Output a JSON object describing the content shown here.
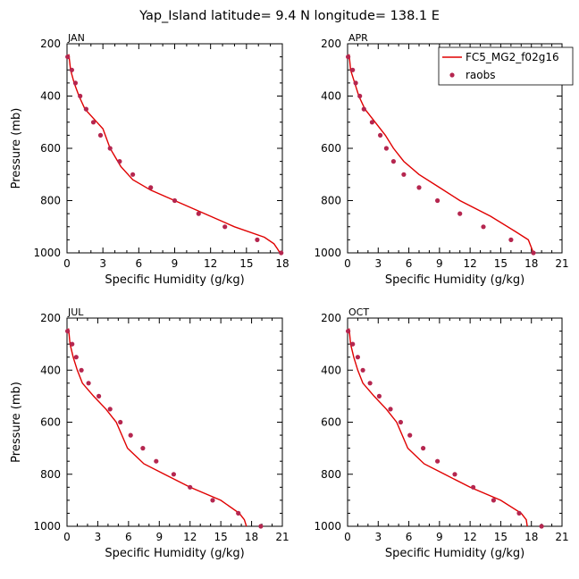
{
  "figure": {
    "title": "Yap_Island  latitude= 9.4 N longitude= 138.1 E"
  },
  "colors": {
    "model_line": "#e00000",
    "raobs_marker": "#b5264f",
    "axes": "#000000"
  },
  "chart_data": [
    {
      "type": "line",
      "panel_title": "JAN",
      "xlabel": "Specific Humidity (g/kg)",
      "ylabel": "Pressure (mb)",
      "xlim": [
        0,
        18
      ],
      "xticks": [
        0,
        3,
        6,
        9,
        12,
        15,
        18
      ],
      "ylim": [
        1000,
        200
      ],
      "yticks": [
        200,
        400,
        600,
        800,
        1000
      ],
      "legend": null,
      "series": [
        {
          "name": "FC5_MG2_f02g16",
          "kind": "line",
          "points": [
            [
              0.15,
              240
            ],
            [
              0.3,
              300
            ],
            [
              0.6,
              350
            ],
            [
              1.0,
              400
            ],
            [
              1.5,
              450
            ],
            [
              2.5,
              500
            ],
            [
              3.0,
              525
            ],
            [
              3.6,
              600
            ],
            [
              4.5,
              670
            ],
            [
              5.5,
              720
            ],
            [
              7.0,
              760
            ],
            [
              9.0,
              800
            ],
            [
              11.5,
              850
            ],
            [
              14.0,
              900
            ],
            [
              16.5,
              940
            ],
            [
              17.3,
              965
            ],
            [
              17.6,
              985
            ],
            [
              17.8,
              1000
            ]
          ]
        },
        {
          "name": "raobs",
          "kind": "scatter",
          "points": [
            [
              0.05,
              250
            ],
            [
              0.4,
              300
            ],
            [
              0.7,
              350
            ],
            [
              1.1,
              400
            ],
            [
              1.6,
              450
            ],
            [
              2.2,
              500
            ],
            [
              2.8,
              550
            ],
            [
              3.6,
              600
            ],
            [
              4.4,
              650
            ],
            [
              5.5,
              700
            ],
            [
              7.0,
              750
            ],
            [
              9.0,
              800
            ],
            [
              11.0,
              850
            ],
            [
              13.2,
              900
            ],
            [
              15.9,
              950
            ],
            [
              17.9,
              1000
            ]
          ]
        }
      ]
    },
    {
      "type": "line",
      "panel_title": "APR",
      "xlabel": "Specific Humidity (g/kg)",
      "ylabel": "",
      "xlim": [
        0,
        21
      ],
      "xticks": [
        0,
        3,
        6,
        9,
        12,
        15,
        18,
        21
      ],
      "ylim": [
        1000,
        200
      ],
      "yticks": [
        200,
        400,
        600,
        800,
        1000
      ],
      "legend": {
        "placement": "top-right",
        "entries": [
          {
            "label": "FC5_MG2_f02g16",
            "kind": "line"
          },
          {
            "label": "raobs",
            "kind": "marker"
          }
        ]
      },
      "series": [
        {
          "name": "FC5_MG2_f02g16",
          "kind": "line",
          "points": [
            [
              0.15,
              240
            ],
            [
              0.3,
              300
            ],
            [
              0.7,
              350
            ],
            [
              1.1,
              400
            ],
            [
              1.7,
              450
            ],
            [
              2.7,
              500
            ],
            [
              3.7,
              550
            ],
            [
              4.5,
              600
            ],
            [
              5.5,
              650
            ],
            [
              7.0,
              700
            ],
            [
              9.0,
              750
            ],
            [
              11.0,
              800
            ],
            [
              14.0,
              860
            ],
            [
              16.5,
              920
            ],
            [
              17.7,
              950
            ],
            [
              18.0,
              980
            ],
            [
              18.2,
              1000
            ]
          ]
        },
        {
          "name": "raobs",
          "kind": "scatter",
          "points": [
            [
              0.05,
              250
            ],
            [
              0.5,
              300
            ],
            [
              0.8,
              350
            ],
            [
              1.2,
              400
            ],
            [
              1.6,
              450
            ],
            [
              2.4,
              500
            ],
            [
              3.2,
              550
            ],
            [
              3.8,
              600
            ],
            [
              4.5,
              650
            ],
            [
              5.5,
              700
            ],
            [
              7.0,
              750
            ],
            [
              8.8,
              800
            ],
            [
              11.0,
              850
            ],
            [
              13.3,
              900
            ],
            [
              16.0,
              950
            ],
            [
              18.2,
              1000
            ]
          ]
        }
      ]
    },
    {
      "type": "line",
      "panel_title": "JUL",
      "xlabel": "Specific Humidity (g/kg)",
      "ylabel": "Pressure (mb)",
      "xlim": [
        0,
        21
      ],
      "xticks": [
        0,
        3,
        6,
        9,
        12,
        15,
        18,
        21
      ],
      "ylim": [
        1000,
        200
      ],
      "yticks": [
        200,
        400,
        600,
        800,
        1000
      ],
      "legend": null,
      "series": [
        {
          "name": "FC5_MG2_f02g16",
          "kind": "line",
          "points": [
            [
              0.15,
              240
            ],
            [
              0.3,
              300
            ],
            [
              0.6,
              350
            ],
            [
              1.0,
              400
            ],
            [
              1.5,
              450
            ],
            [
              2.6,
              500
            ],
            [
              3.8,
              550
            ],
            [
              4.8,
              600
            ],
            [
              5.9,
              700
            ],
            [
              7.5,
              760
            ],
            [
              9.5,
              800
            ],
            [
              12.0,
              850
            ],
            [
              15.0,
              900
            ],
            [
              16.8,
              950
            ],
            [
              17.3,
              975
            ],
            [
              17.5,
              1000
            ]
          ]
        },
        {
          "name": "raobs",
          "kind": "scatter",
          "points": [
            [
              0.05,
              250
            ],
            [
              0.5,
              300
            ],
            [
              0.9,
              350
            ],
            [
              1.4,
              400
            ],
            [
              2.1,
              450
            ],
            [
              3.1,
              500
            ],
            [
              4.2,
              550
            ],
            [
              5.2,
              600
            ],
            [
              6.2,
              650
            ],
            [
              7.4,
              700
            ],
            [
              8.7,
              750
            ],
            [
              10.4,
              800
            ],
            [
              12.0,
              850
            ],
            [
              14.2,
              900
            ],
            [
              16.7,
              950
            ],
            [
              18.9,
              1000
            ]
          ]
        }
      ]
    },
    {
      "type": "line",
      "panel_title": "OCT",
      "xlabel": "Specific Humidity (g/kg)",
      "ylabel": "",
      "xlim": [
        0,
        21
      ],
      "xticks": [
        0,
        3,
        6,
        9,
        12,
        15,
        18,
        21
      ],
      "ylim": [
        1000,
        200
      ],
      "yticks": [
        200,
        400,
        600,
        800,
        1000
      ],
      "legend": null,
      "series": [
        {
          "name": "FC5_MG2_f02g16",
          "kind": "line",
          "points": [
            [
              0.15,
              240
            ],
            [
              0.3,
              300
            ],
            [
              0.6,
              350
            ],
            [
              1.0,
              400
            ],
            [
              1.5,
              450
            ],
            [
              2.6,
              500
            ],
            [
              3.8,
              550
            ],
            [
              4.8,
              600
            ],
            [
              5.9,
              700
            ],
            [
              7.5,
              760
            ],
            [
              9.5,
              800
            ],
            [
              12.0,
              850
            ],
            [
              15.0,
              900
            ],
            [
              17.0,
              950
            ],
            [
              17.5,
              975
            ],
            [
              17.6,
              1000
            ]
          ]
        },
        {
          "name": "raobs",
          "kind": "scatter",
          "points": [
            [
              0.05,
              250
            ],
            [
              0.5,
              300
            ],
            [
              1.0,
              350
            ],
            [
              1.5,
              400
            ],
            [
              2.2,
              450
            ],
            [
              3.1,
              500
            ],
            [
              4.2,
              550
            ],
            [
              5.2,
              600
            ],
            [
              6.1,
              650
            ],
            [
              7.4,
              700
            ],
            [
              8.8,
              750
            ],
            [
              10.5,
              800
            ],
            [
              12.3,
              850
            ],
            [
              14.3,
              900
            ],
            [
              16.8,
              950
            ],
            [
              19.0,
              1000
            ]
          ]
        }
      ]
    }
  ]
}
